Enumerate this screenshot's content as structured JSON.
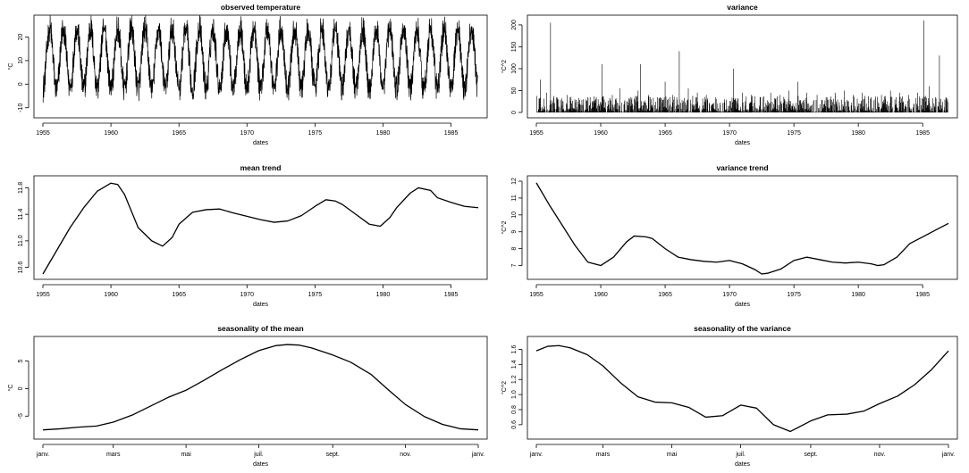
{
  "chart_data": [
    {
      "type": "line",
      "title": "observed temperature",
      "xlabel": "dates",
      "ylabel": "°C",
      "xlim": [
        1955,
        1987
      ],
      "ylim": [
        -12,
        27
      ],
      "xticks": [
        1955,
        1960,
        1965,
        1970,
        1975,
        1980,
        1985
      ],
      "xtick_labels": [
        "1955",
        "1960",
        "1965",
        "1970",
        "1975",
        "1980",
        "1985"
      ],
      "yticks": [
        -10,
        0,
        10,
        20
      ],
      "ytick_labels": [
        "-10",
        "0",
        "10",
        "20"
      ],
      "grid": false,
      "series": [
        {
          "style": "daily-seasonal",
          "x": [
            1955,
            1955.5,
            1956,
            1956.5,
            1957,
            1957.5,
            1958,
            1958.5,
            1959,
            1959.5,
            1960,
            1960.5,
            1961,
            1961.5,
            1962,
            1962.5,
            1963,
            1963.5,
            1964,
            1964.5,
            1965,
            1965.5,
            1966,
            1966.5,
            1967,
            1967.5,
            1968,
            1968.5,
            1969,
            1969.5,
            1970,
            1970.5,
            1971,
            1971.5,
            1972,
            1972.5,
            1973,
            1973.5,
            1974,
            1974.5,
            1975,
            1975.5,
            1976,
            1976.5,
            1977,
            1977.5,
            1978,
            1978.5,
            1979,
            1979.5,
            1980,
            1980.5,
            1981,
            1981.5,
            1982,
            1982.5,
            1983,
            1983.5,
            1984,
            1984.5,
            1985,
            1985.5,
            1986,
            1986.5,
            1987
          ],
          "y": [
            0,
            24,
            -10,
            25,
            -3,
            24,
            0,
            23,
            -2,
            25,
            -5,
            24,
            -1,
            23,
            0,
            24,
            -6,
            25,
            -2,
            23,
            -3,
            24,
            0,
            23,
            -1,
            24,
            -4,
            25,
            -2,
            23,
            -1,
            24,
            -3,
            25,
            -2,
            24,
            0,
            25,
            -1,
            26,
            -2,
            25,
            -3,
            26,
            -1,
            25,
            -2,
            24,
            -1,
            25,
            -3,
            24,
            0,
            24,
            -2,
            25,
            -1,
            26,
            -4,
            24,
            -10,
            25,
            0,
            25,
            1
          ]
        }
      ]
    },
    {
      "type": "line",
      "title": "variance",
      "xlabel": "dates",
      "ylabel": "°C^2",
      "xlim": [
        1955,
        1987
      ],
      "ylim": [
        0,
        210
      ],
      "xticks": [
        1955,
        1960,
        1965,
        1970,
        1975,
        1980,
        1985
      ],
      "xtick_labels": [
        "1955",
        "1960",
        "1965",
        "1970",
        "1975",
        "1980",
        "1985"
      ],
      "yticks": [
        0,
        50,
        100,
        150,
        200
      ],
      "ytick_labels": [
        "0",
        "50",
        "100",
        "150",
        "200"
      ],
      "grid": false,
      "series": [
        {
          "style": "spikes",
          "x": [
            1955.3,
            1955.8,
            1956.1,
            1956.6,
            1957.4,
            1958.2,
            1959.0,
            1959.8,
            1960.1,
            1960.9,
            1961.5,
            1962.3,
            1962.9,
            1963.1,
            1963.7,
            1964.4,
            1965.0,
            1965.6,
            1966.1,
            1966.8,
            1967.5,
            1968.2,
            1968.9,
            1969.6,
            1970.3,
            1971.0,
            1971.7,
            1972.4,
            1973.2,
            1973.9,
            1974.6,
            1975.3,
            1976.0,
            1976.8,
            1977.5,
            1978.2,
            1978.9,
            1979.6,
            1980.3,
            1981.0,
            1981.8,
            1982.5,
            1983.2,
            1983.9,
            1984.6,
            1985.1,
            1985.5,
            1986.0,
            1986.3,
            1986.8
          ],
          "y": [
            75,
            45,
            205,
            30,
            40,
            25,
            35,
            30,
            110,
            40,
            55,
            35,
            50,
            110,
            40,
            35,
            70,
            40,
            140,
            55,
            45,
            40,
            35,
            30,
            100,
            45,
            40,
            35,
            45,
            40,
            50,
            70,
            45,
            40,
            35,
            45,
            50,
            40,
            45,
            35,
            40,
            50,
            45,
            40,
            45,
            210,
            60,
            35,
            130,
            35
          ]
        }
      ]
    },
    {
      "type": "line",
      "title": "mean trend",
      "xlabel": "dates",
      "ylabel": "",
      "xlim": [
        1955,
        1987
      ],
      "ylim": [
        10.5,
        11.9
      ],
      "xticks": [
        1955,
        1960,
        1965,
        1970,
        1975,
        1980,
        1985
      ],
      "xtick_labels": [
        "1955",
        "1960",
        "1965",
        "1970",
        "1975",
        "1980",
        "1985"
      ],
      "yticks": [
        10.6,
        11.0,
        11.4,
        11.8
      ],
      "ytick_labels": [
        "10.6",
        "11.0",
        "11.4",
        "11.8"
      ],
      "grid": false,
      "series": [
        {
          "x": [
            1955,
            1956,
            1957,
            1958,
            1959,
            1960,
            1960.5,
            1961,
            1962,
            1963,
            1963.8,
            1964.5,
            1965,
            1966,
            1967,
            1968,
            1969,
            1970,
            1971,
            1972,
            1973,
            1974,
            1975,
            1975.8,
            1976.5,
            1977,
            1978,
            1979,
            1979.8,
            1980.5,
            1981,
            1982,
            1982.6,
            1983.5,
            1984,
            1985,
            1986,
            1987
          ],
          "y": [
            10.5,
            10.85,
            11.2,
            11.5,
            11.75,
            11.87,
            11.85,
            11.7,
            11.2,
            11.0,
            10.92,
            11.05,
            11.25,
            11.43,
            11.47,
            11.48,
            11.42,
            11.37,
            11.32,
            11.28,
            11.3,
            11.38,
            11.52,
            11.62,
            11.6,
            11.55,
            11.4,
            11.25,
            11.22,
            11.35,
            11.5,
            11.72,
            11.8,
            11.76,
            11.65,
            11.58,
            11.52,
            11.5
          ]
        }
      ]
    },
    {
      "type": "line",
      "title": "variance trend",
      "xlabel": "dates",
      "ylabel": "°C^2",
      "xlim": [
        1955,
        1987
      ],
      "ylim": [
        6.5,
        12
      ],
      "xticks": [
        1955,
        1960,
        1965,
        1970,
        1975,
        1980,
        1985
      ],
      "xtick_labels": [
        "1955",
        "1960",
        "1965",
        "1970",
        "1975",
        "1980",
        "1985"
      ],
      "yticks": [
        7,
        8,
        9,
        10,
        11,
        12
      ],
      "ytick_labels": [
        "7",
        "8",
        "9",
        "10",
        "11",
        "12"
      ],
      "grid": false,
      "series": [
        {
          "x": [
            1955,
            1956,
            1957,
            1958,
            1959,
            1960,
            1961,
            1962,
            1962.6,
            1963.5,
            1964,
            1965,
            1966,
            1967,
            1968,
            1969,
            1970,
            1971,
            1972,
            1972.5,
            1973,
            1974,
            1975,
            1976,
            1977,
            1978,
            1979,
            1980,
            1981,
            1981.5,
            1982,
            1983,
            1984,
            1985,
            1986,
            1987
          ],
          "y": [
            11.9,
            10.6,
            9.4,
            8.2,
            7.2,
            7.0,
            7.5,
            8.4,
            8.75,
            8.7,
            8.6,
            8.0,
            7.5,
            7.35,
            7.25,
            7.2,
            7.3,
            7.1,
            6.75,
            6.5,
            6.55,
            6.8,
            7.3,
            7.5,
            7.35,
            7.2,
            7.15,
            7.2,
            7.1,
            7.0,
            7.05,
            7.5,
            8.3,
            8.7,
            9.1,
            9.5
          ]
        }
      ]
    },
    {
      "type": "line",
      "title": "seasonality of the mean",
      "xlabel": "dates",
      "ylabel": "°C",
      "xlim": [
        0,
        365
      ],
      "ylim": [
        -8.2,
        8.5
      ],
      "xticks": [
        0,
        59,
        120,
        181,
        243,
        304,
        365
      ],
      "xtick_labels": [
        "janv.",
        "mars",
        "mai",
        "juil.",
        "sept.",
        "nov.",
        "janv."
      ],
      "yticks": [
        -5,
        0,
        5
      ],
      "ytick_labels": [
        "-5",
        "0",
        "5"
      ],
      "grid": false,
      "series": [
        {
          "x": [
            0,
            15,
            30,
            45,
            59,
            75,
            90,
            105,
            120,
            135,
            150,
            165,
            181,
            195,
            205,
            215,
            225,
            243,
            258,
            275,
            290,
            304,
            320,
            335,
            350,
            365
          ],
          "y": [
            -7.5,
            -7.3,
            -7.0,
            -6.8,
            -6.1,
            -4.8,
            -3.2,
            -1.6,
            -0.3,
            1.5,
            3.4,
            5.2,
            6.9,
            7.8,
            8.0,
            7.9,
            7.4,
            6.1,
            4.8,
            2.6,
            -0.3,
            -2.9,
            -5.1,
            -6.5,
            -7.3,
            -7.5
          ]
        }
      ]
    },
    {
      "type": "line",
      "title": "seasonality of the variance",
      "xlabel": "dates",
      "ylabel": "°C^2",
      "xlim": [
        0,
        365
      ],
      "ylim": [
        0.48,
        1.7
      ],
      "xticks": [
        0,
        59,
        120,
        181,
        243,
        304,
        365
      ],
      "xtick_labels": [
        "janv.",
        "mars",
        "mai",
        "juil.",
        "sept.",
        "nov.",
        "janv."
      ],
      "yticks": [
        0.6,
        0.8,
        1.0,
        1.2,
        1.4,
        1.6
      ],
      "ytick_labels": [
        "0.6",
        "0.8",
        "1.0",
        "1.2",
        "1.4",
        "1.6"
      ],
      "grid": false,
      "series": [
        {
          "x": [
            0,
            10,
            20,
            30,
            45,
            59,
            75,
            90,
            105,
            120,
            135,
            150,
            165,
            181,
            195,
            210,
            225,
            243,
            258,
            275,
            290,
            304,
            320,
            335,
            350,
            365
          ],
          "y": [
            1.58,
            1.64,
            1.65,
            1.62,
            1.53,
            1.38,
            1.15,
            0.97,
            0.9,
            0.89,
            0.83,
            0.7,
            0.72,
            0.86,
            0.82,
            0.6,
            0.51,
            0.65,
            0.73,
            0.74,
            0.78,
            0.88,
            0.98,
            1.13,
            1.33,
            1.58
          ]
        }
      ]
    }
  ]
}
